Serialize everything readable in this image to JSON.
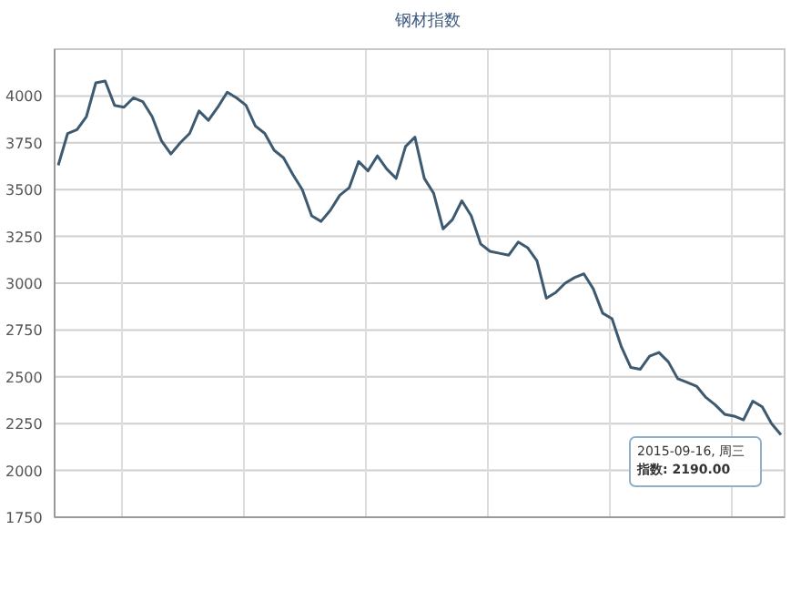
{
  "chart_data": {
    "type": "line",
    "title": "钢材指数",
    "categories": [
      null,
      null,
      null,
      null,
      null,
      null,
      null,
      null,
      null,
      null,
      null,
      null,
      null,
      null,
      null,
      null,
      null,
      null,
      null,
      null,
      null,
      null,
      null,
      null,
      null,
      null,
      null,
      null,
      null,
      null,
      null,
      null,
      null,
      null,
      null,
      null,
      null,
      null,
      null,
      null,
      null,
      null,
      null,
      null,
      null,
      null,
      null,
      null,
      null,
      null,
      null,
      null,
      null,
      null,
      null,
      null,
      null,
      null,
      null,
      null,
      null,
      null,
      null,
      null,
      null,
      null,
      null,
      null,
      null,
      null,
      null,
      null,
      null,
      null,
      null,
      null,
      null,
      null
    ],
    "values": [
      3630,
      3800,
      3820,
      3890,
      4070,
      4080,
      3950,
      3940,
      3990,
      3970,
      3890,
      3760,
      3690,
      3750,
      3800,
      3920,
      3870,
      3940,
      4020,
      3990,
      3950,
      3840,
      3800,
      3710,
      3670,
      3580,
      3500,
      3360,
      3330,
      3390,
      3470,
      3510,
      3650,
      3600,
      3680,
      3610,
      3560,
      3730,
      3780,
      3560,
      3480,
      3290,
      3340,
      3440,
      3360,
      3210,
      3170,
      3160,
      3150,
      3220,
      3190,
      3120,
      2920,
      2950,
      3000,
      3030,
      3050,
      2970,
      2840,
      2810,
      2660,
      2550,
      2540,
      2610,
      2630,
      2580,
      2490,
      2470,
      2450,
      2390,
      2350,
      2300,
      2290,
      2270,
      2370,
      2340,
      2250,
      2190
    ],
    "color": "#3d5a70",
    "ylim": [
      1750,
      4250
    ],
    "yticks": [
      1750,
      2000,
      2250,
      2500,
      2750,
      3000,
      3250,
      3500,
      3750,
      4000
    ],
    "grid": true,
    "annotations": [
      "2015-09-16, 周三",
      "指数: 2190.00"
    ]
  }
}
